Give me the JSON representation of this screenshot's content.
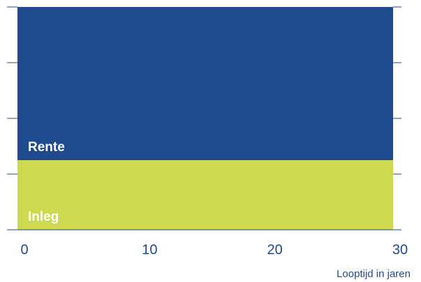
{
  "chart_data": {
    "type": "area",
    "stacked": true,
    "x": [
      0,
      30
    ],
    "xlim": [
      0,
      30
    ],
    "xticks": [
      0,
      10,
      20,
      30
    ],
    "xlabel": "Looptijd in jaren",
    "ylabel": "",
    "title": "",
    "ylim": [
      0,
      4
    ],
    "yticks": [
      1,
      2,
      3
    ],
    "grid": false,
    "series": [
      {
        "name": "Inleg",
        "values": [
          1.25,
          1.25
        ],
        "color": "#cdd94e"
      },
      {
        "name": "Rente",
        "values": [
          2.75,
          2.75
        ],
        "color": "#1f4b8e"
      }
    ]
  },
  "colors": {
    "axis": "#1f4b8e",
    "tick_text": "#1f4b8e",
    "series_label_text": "#ffffff",
    "background": "#ffffff"
  }
}
